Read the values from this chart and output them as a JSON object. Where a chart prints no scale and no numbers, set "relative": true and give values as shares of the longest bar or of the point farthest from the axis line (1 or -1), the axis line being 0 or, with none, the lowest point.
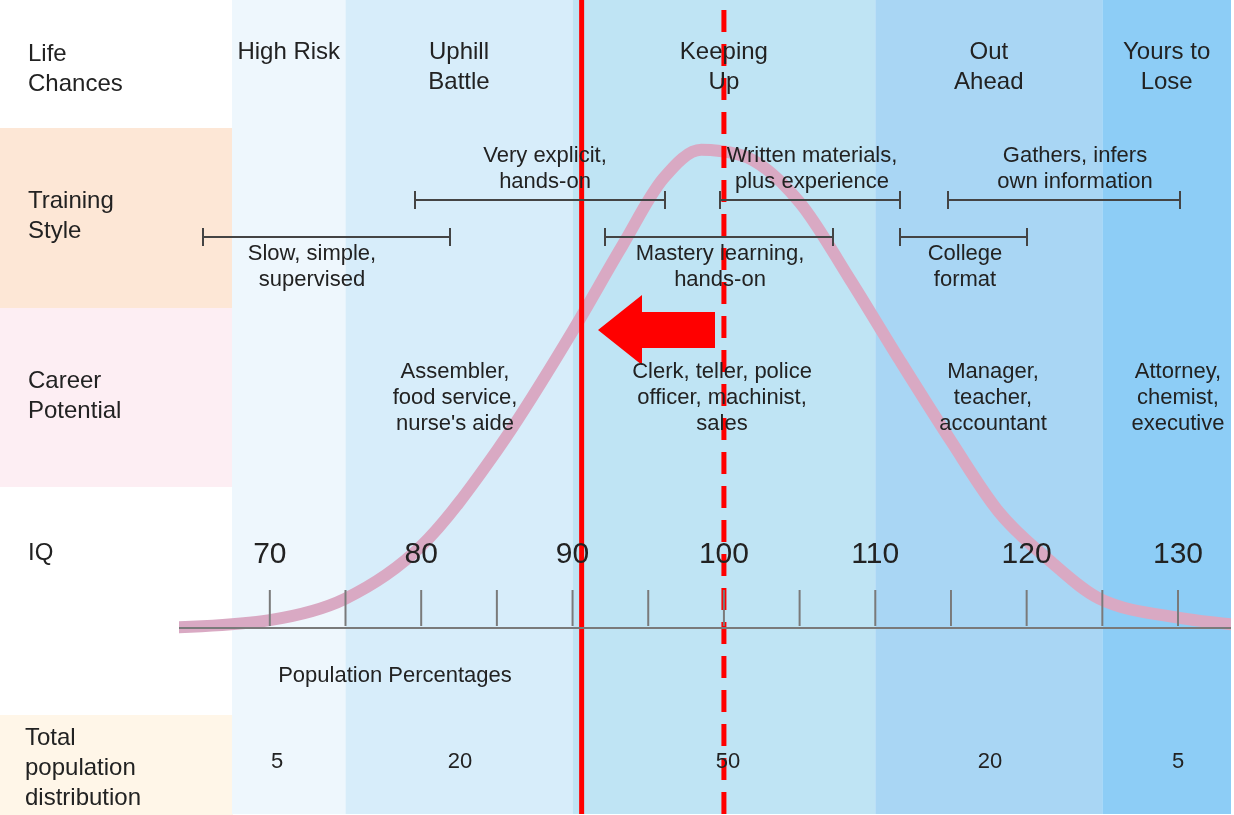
{
  "chart_data": {
    "type": "line",
    "relative": true,
    "x": [
      64,
      70,
      75,
      80,
      85,
      90,
      93.3,
      96,
      98.5,
      101,
      105,
      108.3,
      111.6,
      115,
      118.2,
      121.5,
      124.8,
      130,
      133.5
    ],
    "series": [
      {
        "color": "#d9a9c3",
        "values": [
          0,
          0.015,
          0.06,
          0.17,
          0.37,
          0.62,
          0.8,
          0.94,
          1,
          0.99,
          0.89,
          0.73,
          0.56,
          0.39,
          0.24,
          0.14,
          0.06,
          0.02,
          0.006
        ]
      }
    ],
    "xlim": [
      64,
      133.5
    ],
    "xticks": [
      70,
      80,
      90,
      100,
      110,
      120,
      130
    ],
    "bands": [
      {
        "axis": "x",
        "from": 67.5,
        "to": 75,
        "label": "High Risk",
        "color": "#eef7fd"
      },
      {
        "axis": "x",
        "from": 75,
        "to": 90,
        "label": "Uphill Battle",
        "color": "#d7edfa"
      },
      {
        "axis": "x",
        "from": 90,
        "to": 110,
        "label": "Keeping Up",
        "color": "#bfe4f4"
      },
      {
        "axis": "x",
        "from": 110,
        "to": 125,
        "label": "Out Ahead",
        "color": "#a9d6f4"
      },
      {
        "axis": "x",
        "from": 125,
        "to": 133.5,
        "label": "Yours to Lose",
        "color": "#8dcdf6"
      }
    ],
    "ref_lines": [
      {
        "axis": "x",
        "value": 90.6,
        "color": "#ff0000",
        "line_style": "solid"
      },
      {
        "axis": "x",
        "value": 100,
        "color": "#ff0000",
        "line_style": "dashed"
      }
    ],
    "annotations": [
      "Life Chances",
      "Training Style",
      "Career Potential",
      "IQ",
      "Total population distribution",
      "Population Percentages",
      "Very explicit, hands-on",
      "Written materials, plus experience",
      "Gathers, infers own information",
      "Slow, simple, supervised",
      "Mastery learning, hands-on",
      "College format",
      "Assembler, food service, nurse's aide",
      "Clerk, teller, police officer, machinist, sales",
      "Manager, teacher, accountant",
      "Attorney, chemist, executive",
      "5",
      "20",
      "50",
      "20",
      "5"
    ]
  }
}
